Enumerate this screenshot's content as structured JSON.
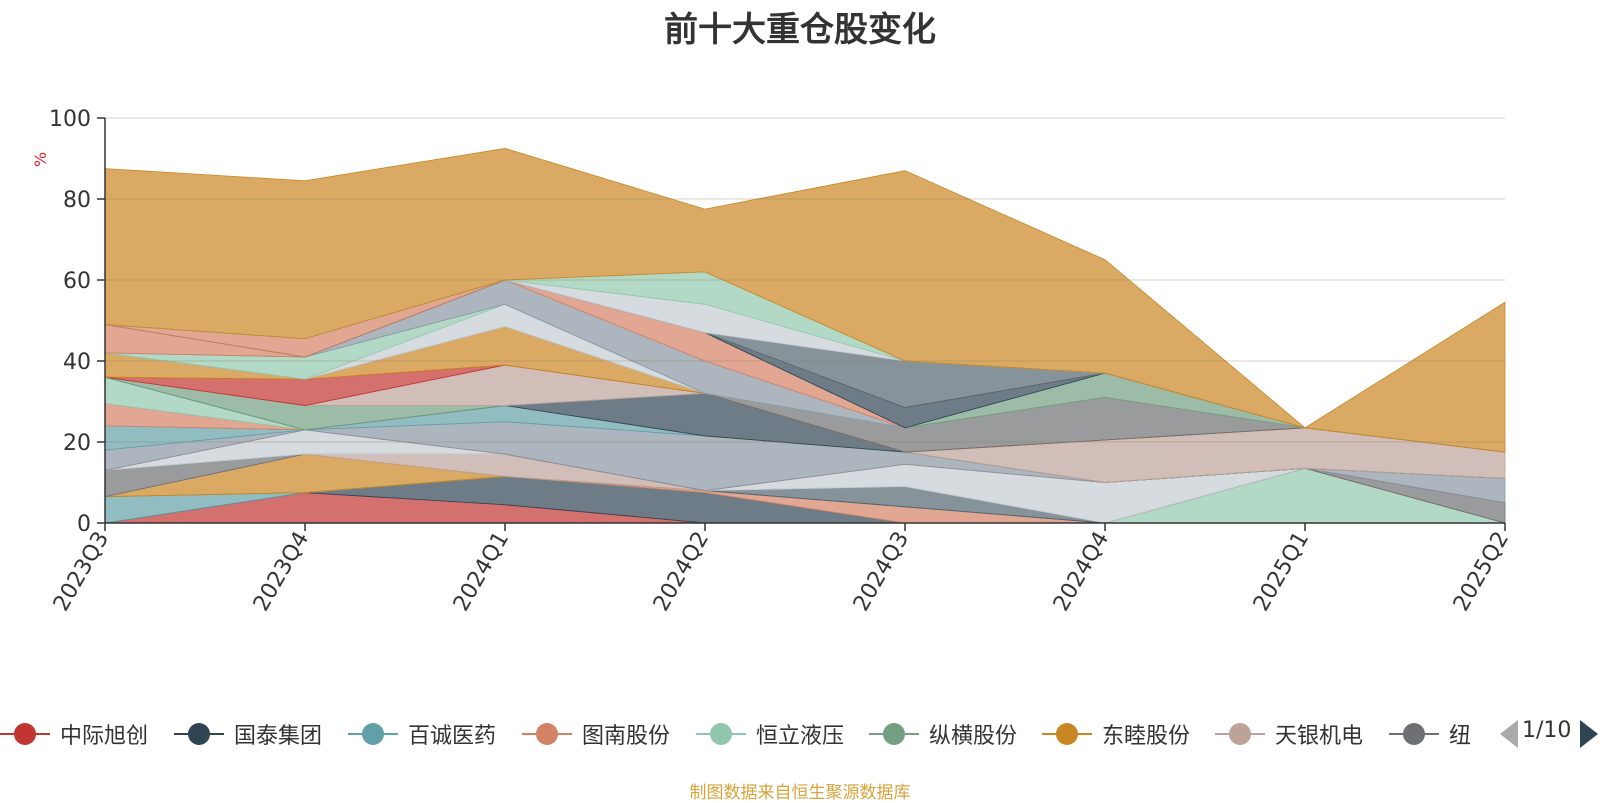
{
  "title": "前十大重仓股变化",
  "source": "制图数据来自恒生聚源数据库",
  "legend_page": "1/10",
  "chart_data": {
    "type": "area",
    "stacked": true,
    "title": "前十大重仓股变化",
    "ylabel": "%",
    "ylim": [
      0,
      100
    ],
    "yticks": [
      0,
      20,
      40,
      60,
      80,
      100
    ],
    "categories": [
      "2023Q3",
      "2023Q4",
      "2024Q1",
      "2024Q2",
      "2024Q3",
      "2024Q4",
      "2025Q1",
      "2025Q2"
    ],
    "grid": true,
    "legend_position": "bottom",
    "series": [
      {
        "name": "中际旭创",
        "color": "#c23531",
        "values": [
          0,
          7.5,
          4.5,
          0,
          0,
          0,
          0,
          0
        ]
      },
      {
        "name": "国泰集团",
        "color": "#2f4554",
        "values": [
          0,
          0,
          7,
          7.5,
          0,
          0,
          0,
          0
        ]
      },
      {
        "name": "百诚医药",
        "color": "#61a0a8",
        "values": [
          6.5,
          0,
          0,
          0,
          0,
          0,
          0,
          0
        ]
      },
      {
        "name": "图南股份",
        "color": "#d48265",
        "values": [
          0,
          0,
          0,
          0.5,
          4,
          0,
          0,
          0
        ]
      },
      {
        "name": "恒立液压",
        "color": "#91c7ae",
        "values": [
          0,
          0,
          0,
          0,
          0,
          0,
          13.5,
          0
        ]
      },
      {
        "name": "纵横股份",
        "color": "#749f83",
        "values": [
          0,
          0,
          0,
          0,
          0,
          0,
          0,
          0
        ]
      },
      {
        "name": "东睦股份",
        "color": "#ca8622",
        "values": [
          0,
          9.5,
          0,
          0,
          0,
          0,
          0,
          0
        ]
      },
      {
        "name": "天银机电",
        "color": "#bda29a",
        "values": [
          0,
          0,
          5.5,
          0,
          0,
          0,
          0,
          0
        ]
      },
      {
        "name": "纽威股份",
        "color": "#6e7074",
        "values": [
          6.5,
          0,
          0,
          0,
          0,
          0,
          0,
          5
        ]
      },
      {
        "name": "—",
        "color": "#546570",
        "values": [
          0,
          0,
          0,
          0,
          5,
          0,
          0,
          0
        ]
      },
      {
        "name": "—",
        "color": "#c4ccd3",
        "values": [
          0,
          6,
          0,
          0,
          5.5,
          10,
          0,
          0
        ]
      },
      {
        "name": "—",
        "color": "#c23531",
        "values": [
          0,
          0,
          0,
          0,
          0,
          0,
          0,
          0
        ]
      },
      {
        "name": "—",
        "color": "#8a97a3",
        "values": [
          5,
          0,
          8,
          13.5,
          3,
          0,
          0,
          6
        ]
      },
      {
        "name": "—",
        "color": "#61a0a8",
        "values": [
          6,
          0,
          4,
          0,
          0,
          0,
          0,
          0
        ]
      },
      {
        "name": "—",
        "color": "#d48265",
        "values": [
          5.5,
          0,
          0,
          0,
          0,
          0,
          0,
          0
        ]
      },
      {
        "name": "—",
        "color": "#91c7ae",
        "values": [
          6.5,
          0,
          0,
          0,
          0,
          0,
          0,
          0
        ]
      },
      {
        "name": "—",
        "color": "#2f4554",
        "values": [
          0,
          0,
          0,
          10.5,
          0,
          0,
          0,
          0
        ]
      },
      {
        "name": "—",
        "color": "#749f83",
        "values": [
          0,
          6,
          0,
          0,
          0,
          0,
          0,
          0
        ]
      },
      {
        "name": "—",
        "color": "#bda29a",
        "values": [
          0,
          0,
          10,
          0,
          0,
          10.5,
          10,
          6.5
        ]
      },
      {
        "name": "—",
        "color": "#c23531",
        "values": [
          0,
          6.5,
          0,
          0,
          0,
          0,
          0,
          0
        ]
      },
      {
        "name": "—",
        "color": "#ca8622",
        "values": [
          6,
          0,
          9.5,
          0,
          0,
          0,
          0,
          0
        ]
      },
      {
        "name": "—",
        "color": "#6e7074",
        "values": [
          0,
          0,
          0,
          0,
          6,
          10.5,
          0,
          0
        ]
      },
      {
        "name": "—",
        "color": "#c4ccd3",
        "values": [
          0,
          0,
          5.5,
          0,
          0,
          0,
          0,
          0
        ]
      },
      {
        "name": "—",
        "color": "#91c7ae",
        "values": [
          0,
          5.5,
          0,
          0,
          0,
          0,
          0,
          0
        ]
      },
      {
        "name": "—",
        "color": "#8a97a3",
        "values": [
          0,
          0,
          6,
          8,
          0,
          0,
          0,
          0
        ]
      },
      {
        "name": "—",
        "color": "#d48265",
        "values": [
          7,
          0,
          0,
          7,
          0,
          0,
          0,
          0
        ]
      },
      {
        "name": "—",
        "color": "#749f83",
        "values": [
          0,
          0,
          0,
          0,
          0,
          6,
          0,
          0
        ]
      },
      {
        "name": "—",
        "color": "#2f4554",
        "values": [
          0,
          0,
          0,
          0,
          5,
          0,
          0,
          0
        ]
      },
      {
        "name": "—",
        "color": "#d48265",
        "values": [
          0,
          4.5,
          0,
          0,
          0,
          0,
          0,
          0
        ]
      },
      {
        "name": "—",
        "color": "#546570",
        "values": [
          0,
          0,
          0,
          0,
          11.5,
          0,
          0,
          0
        ]
      },
      {
        "name": "—",
        "color": "#c4ccd3",
        "values": [
          0,
          0,
          0,
          7,
          0,
          0,
          0,
          0
        ]
      },
      {
        "name": "—",
        "color": "#91c7ae",
        "values": [
          0,
          0,
          0,
          8,
          0,
          0,
          0,
          0
        ]
      },
      {
        "name": "—",
        "color": "#ca8622",
        "values": [
          38.5,
          39,
          32.5,
          15.5,
          47,
          28,
          0,
          37
        ]
      }
    ],
    "legend_entries": [
      {
        "label": "中际旭创",
        "color": "#c23531"
      },
      {
        "label": "国泰集团",
        "color": "#2f4554"
      },
      {
        "label": "百诚医药",
        "color": "#61a0a8"
      },
      {
        "label": "图南股份",
        "color": "#d48265"
      },
      {
        "label": "恒立液压",
        "color": "#91c7ae"
      },
      {
        "label": "纵横股份",
        "color": "#749f83"
      },
      {
        "label": "东睦股份",
        "color": "#ca8622"
      },
      {
        "label": "天银机电",
        "color": "#bda29a"
      },
      {
        "label": "纽",
        "color": "#6e7074"
      }
    ]
  }
}
